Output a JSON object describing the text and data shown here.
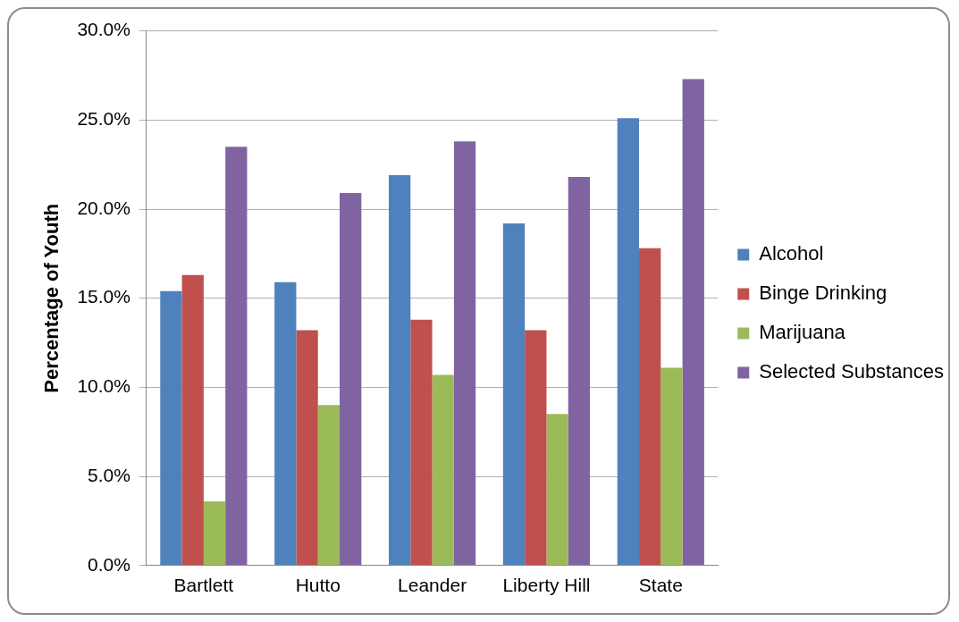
{
  "chart_data": {
    "type": "bar",
    "ylabel": "Percentage of Youth",
    "categories": [
      "Bartlett",
      "Hutto",
      "Leander",
      "Liberty Hill",
      "State"
    ],
    "series": [
      {
        "name": "Alcohol",
        "color": "#4f81bd",
        "values": [
          15.4,
          15.9,
          21.9,
          19.2,
          25.1
        ]
      },
      {
        "name": "Binge Drinking",
        "color": "#c0504d",
        "values": [
          16.3,
          13.2,
          13.8,
          13.2,
          17.8
        ]
      },
      {
        "name": "Marijuana",
        "color": "#9bbb59",
        "values": [
          3.6,
          9.0,
          10.7,
          8.5,
          11.1
        ]
      },
      {
        "name": "Selected Substances",
        "color": "#8064a2",
        "values": [
          23.5,
          20.9,
          23.8,
          21.8,
          27.3
        ]
      }
    ],
    "ylim": [
      0,
      30
    ],
    "yticks": [
      {
        "value": 0,
        "label": "0.0%"
      },
      {
        "value": 5,
        "label": "5.0%"
      },
      {
        "value": 10,
        "label": "10.0%"
      },
      {
        "value": 15,
        "label": "15.0%"
      },
      {
        "value": 20,
        "label": "20.0%"
      },
      {
        "value": 25,
        "label": "25.0%"
      },
      {
        "value": 30,
        "label": "30.0%"
      }
    ],
    "grid": "y",
    "legend": "right"
  }
}
